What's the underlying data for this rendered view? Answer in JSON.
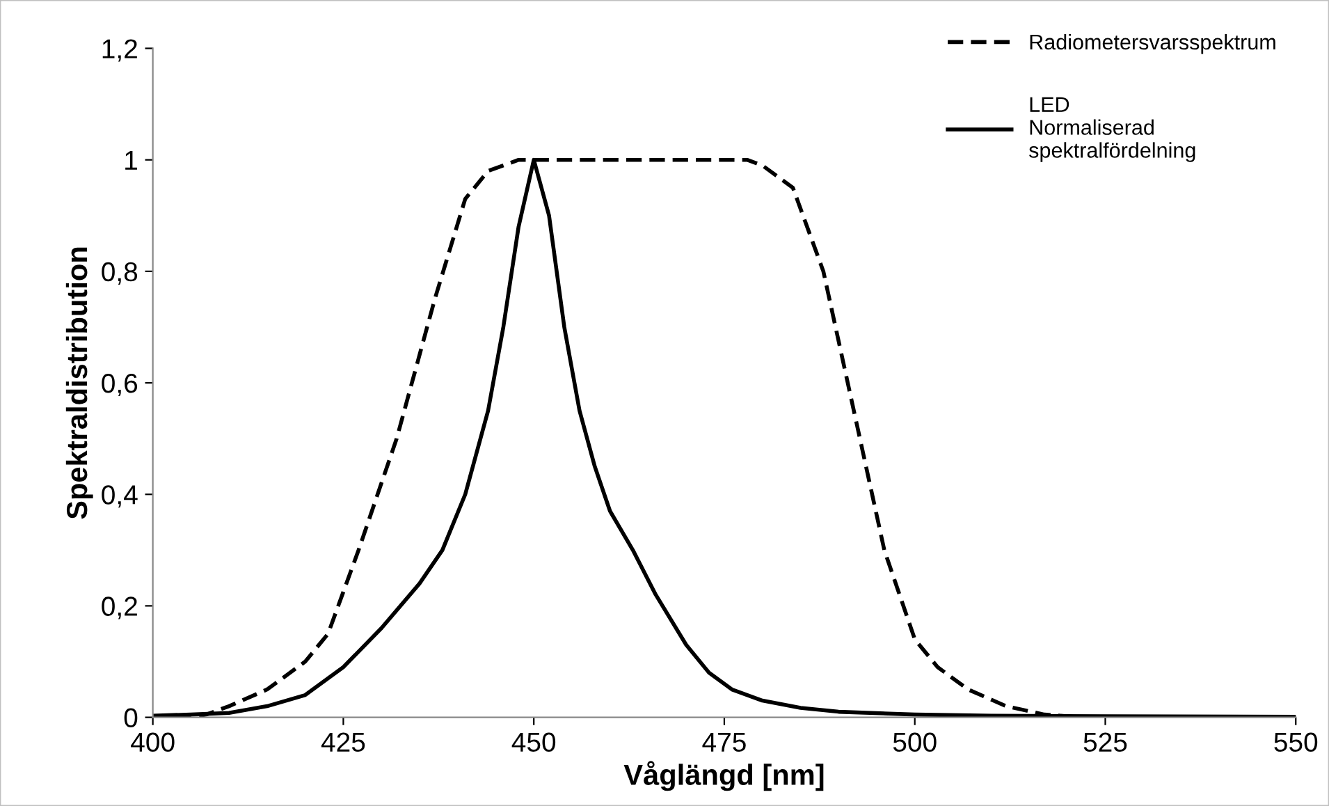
{
  "chart_data": {
    "type": "line",
    "xlabel": "Våglängd [nm]",
    "ylabel": "Spektraldistribution",
    "xlim": [
      400,
      550
    ],
    "xticks": [
      400,
      425,
      450,
      475,
      500,
      525,
      550
    ],
    "ylim": [
      0,
      1.2
    ],
    "yticks": [
      {
        "value": 0,
        "label": "0"
      },
      {
        "value": 0.2,
        "label": "0,2"
      },
      {
        "value": 0.4,
        "label": "0,4"
      },
      {
        "value": 0.6,
        "label": "0,6"
      },
      {
        "value": 0.8,
        "label": "0,8"
      },
      {
        "value": 1,
        "label": "1"
      },
      {
        "value": 1.2,
        "label": "1,2"
      }
    ],
    "grid": false,
    "legend": "top right",
    "marker": "none",
    "series": [
      {
        "name": "Radiometersvarsspektrum",
        "color": "#000000",
        "line_style": "dashed",
        "x": [
          400,
          405,
          407,
          410,
          415,
          420,
          423,
          427,
          432,
          437,
          441,
          444,
          448,
          478,
          480,
          484,
          488,
          492,
          496,
          500,
          503,
          507,
          512,
          517,
          522,
          550
        ],
        "values": [
          0,
          0,
          0.005,
          0.02,
          0.05,
          0.1,
          0.15,
          0.3,
          0.5,
          0.75,
          0.93,
          0.98,
          1,
          1,
          0.99,
          0.95,
          0.8,
          0.55,
          0.3,
          0.14,
          0.09,
          0.05,
          0.02,
          0.005,
          0,
          0
        ]
      },
      {
        "name": "LED\nNormaliserad\nspektralfördelning",
        "color": "#000000",
        "line_style": "solid",
        "x": [
          400,
          405,
          410,
          415,
          420,
          425,
          430,
          435,
          438,
          441,
          444,
          446,
          448,
          450,
          452,
          454,
          456,
          458,
          460,
          463,
          466,
          470,
          473,
          476,
          480,
          485,
          490,
          500,
          510,
          525,
          550
        ],
        "values": [
          0.003,
          0.005,
          0.008,
          0.02,
          0.04,
          0.09,
          0.16,
          0.24,
          0.3,
          0.4,
          0.55,
          0.7,
          0.88,
          1,
          0.9,
          0.7,
          0.55,
          0.45,
          0.37,
          0.3,
          0.22,
          0.13,
          0.08,
          0.05,
          0.03,
          0.017,
          0.01,
          0.005,
          0.003,
          0.002,
          0.001
        ]
      }
    ]
  }
}
